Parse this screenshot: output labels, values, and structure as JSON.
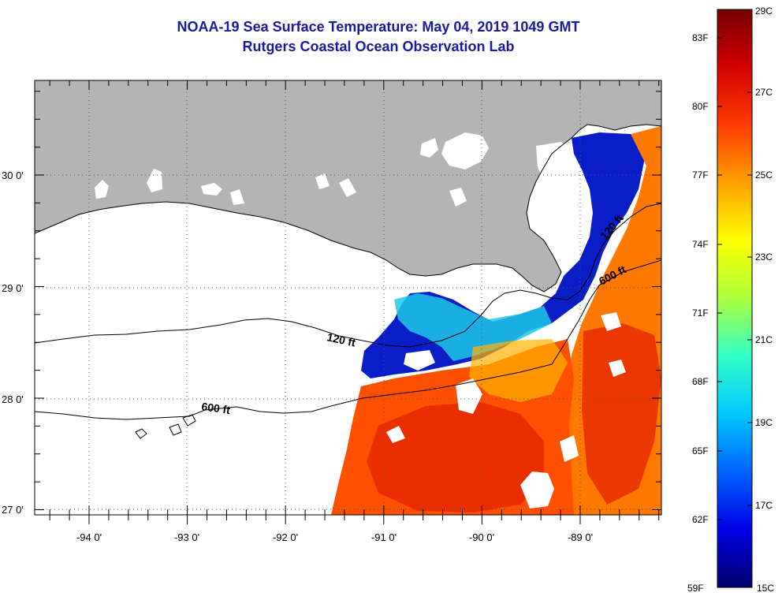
{
  "header": {
    "title": "NOAA-19 Sea Surface Temperature:  May 04, 2019 1049 GMT",
    "subtitle": "Rutgers Coastal Ocean Observation Lab"
  },
  "map": {
    "lon_labels": [
      "-94 0'",
      "-93 0'",
      "-92 0'",
      "-91 0'",
      "-90 0'",
      "-89 0'"
    ],
    "lat_labels": [
      "30 0'",
      "29 0'",
      "28 0'",
      "27 0'"
    ],
    "contours": [
      {
        "label": "120 ft"
      },
      {
        "label": "600 ft"
      },
      {
        "label": "120 ft"
      },
      {
        "label": "600 ft"
      }
    ],
    "colors": {
      "land": "#b4b4b4",
      "cloud": "#ffffff",
      "grid": "#555555"
    }
  },
  "colorbar": {
    "fahrenheit_labels": [
      "83F",
      "80F",
      "77F",
      "74F",
      "71F",
      "68F",
      "65F",
      "62F",
      "59F"
    ],
    "celsius_labels": [
      "29C",
      "27C",
      "25C",
      "23C",
      "21C",
      "19C",
      "17C",
      "15C"
    ],
    "stops": [
      "#00006e",
      "#0000e6",
      "#0064ff",
      "#00c8ff",
      "#32ffc8",
      "#aaff3c",
      "#ffff00",
      "#ffa000",
      "#ff3c00",
      "#d20000",
      "#780000"
    ]
  }
}
